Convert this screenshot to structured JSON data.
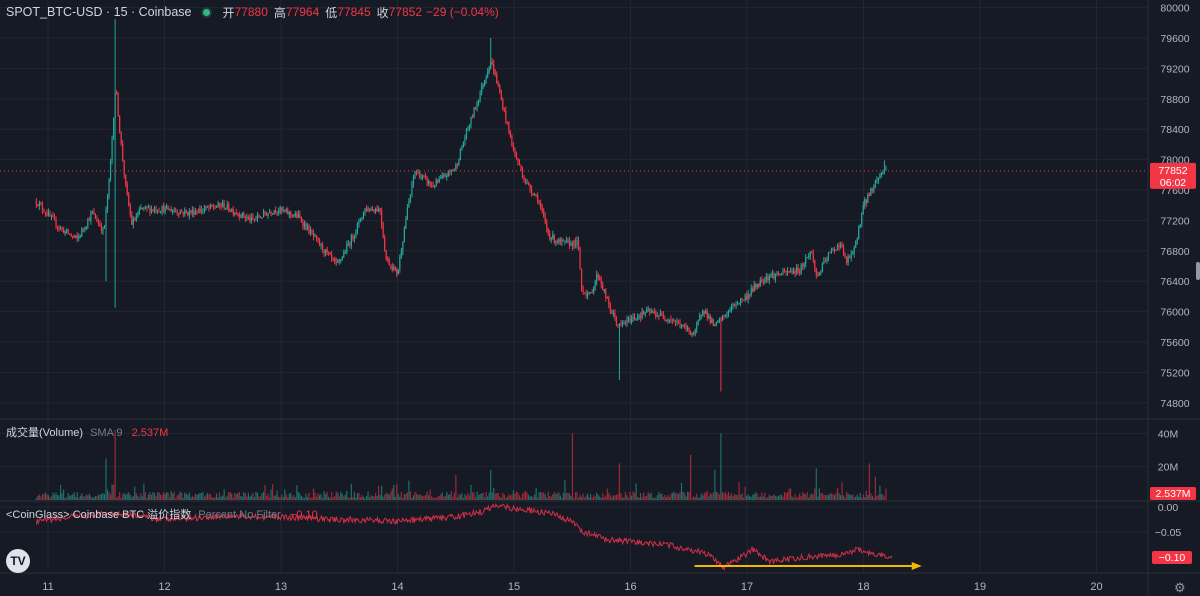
{
  "header": {
    "symbol": "SPOT_BTC-USD · 15 · Coinbase",
    "open_label": "开",
    "open_value": "77880",
    "high_label": "高",
    "high_value": "77964",
    "low_label": "低",
    "low_value": "77845",
    "close_label": "收",
    "close_value": "77852",
    "change": "−29 (−0.04%)"
  },
  "price_tag": {
    "price": "77852",
    "countdown": "06:02"
  },
  "volume_legend": {
    "title": "成交量(Volume)",
    "sma": "SMA 9",
    "value": "2.537M",
    "tag": "2.537M"
  },
  "cg_legend": {
    "title": "<CoinGlass> Coinbase BTC 溢价指数",
    "settings": "Percent No Filter",
    "value": "−0.10",
    "tag": "−0.10"
  },
  "logo_text": "TV",
  "colors": {
    "up": "#26a69a",
    "down": "#f23645",
    "bg": "#161a25",
    "grid": "#222633",
    "premium": "#d32f47",
    "arrow": "#f5b800"
  },
  "chart_data": [
    {
      "type": "candlestick",
      "title": "SPOT_BTC-USD · 15 · Coinbase",
      "x_ticks": [
        "11",
        "12",
        "13",
        "14",
        "15",
        "16",
        "17",
        "18",
        "19",
        "20"
      ],
      "ylim": [
        74600,
        80100
      ],
      "y_ticks": [
        74800,
        75200,
        75600,
        76000,
        76400,
        76800,
        77200,
        77600,
        78000,
        78400,
        78800,
        79200,
        79600,
        80000
      ],
      "last_price": 77852,
      "close_anchors": [
        [
          10.9,
          77450
        ],
        [
          11.1,
          77100
        ],
        [
          11.25,
          76950
        ],
        [
          11.38,
          77300
        ],
        [
          11.48,
          77050
        ],
        [
          11.53,
          77800
        ],
        [
          11.58,
          79000
        ],
        [
          11.62,
          78300
        ],
        [
          11.67,
          77600
        ],
        [
          11.72,
          77150
        ],
        [
          11.8,
          77350
        ],
        [
          12.0,
          77350
        ],
        [
          12.2,
          77300
        ],
        [
          12.5,
          77400
        ],
        [
          12.75,
          77200
        ],
        [
          12.95,
          77350
        ],
        [
          13.15,
          77250
        ],
        [
          13.32,
          76900
        ],
        [
          13.48,
          76600
        ],
        [
          13.62,
          77000
        ],
        [
          13.72,
          77350
        ],
        [
          13.85,
          77350
        ],
        [
          13.9,
          76700
        ],
        [
          14.0,
          76500
        ],
        [
          14.08,
          77300
        ],
        [
          14.15,
          77850
        ],
        [
          14.3,
          77650
        ],
        [
          14.5,
          77900
        ],
        [
          14.58,
          78300
        ],
        [
          14.67,
          78700
        ],
        [
          14.8,
          79300
        ],
        [
          14.85,
          79050
        ],
        [
          14.92,
          78600
        ],
        [
          15.0,
          78100
        ],
        [
          15.1,
          77700
        ],
        [
          15.2,
          77500
        ],
        [
          15.3,
          77000
        ],
        [
          15.4,
          76900
        ],
        [
          15.55,
          76900
        ],
        [
          15.58,
          76300
        ],
        [
          15.65,
          76200
        ],
        [
          15.72,
          76500
        ],
        [
          15.82,
          76050
        ],
        [
          15.9,
          75800
        ],
        [
          16.0,
          75900
        ],
        [
          16.15,
          76000
        ],
        [
          16.35,
          75900
        ],
        [
          16.55,
          75700
        ],
        [
          16.62,
          76050
        ],
        [
          16.72,
          75800
        ],
        [
          16.78,
          75900
        ],
        [
          16.9,
          76100
        ],
        [
          17.0,
          76200
        ],
        [
          17.05,
          76300
        ],
        [
          17.15,
          76450
        ],
        [
          17.3,
          76500
        ],
        [
          17.45,
          76550
        ],
        [
          17.55,
          76800
        ],
        [
          17.6,
          76450
        ],
        [
          17.7,
          76750
        ],
        [
          17.8,
          76900
        ],
        [
          17.85,
          76650
        ],
        [
          17.92,
          76800
        ],
        [
          18.0,
          77400
        ],
        [
          18.1,
          77700
        ],
        [
          18.18,
          77880
        ]
      ],
      "low_spikes": [
        [
          11.4,
          76500
        ],
        [
          11.5,
          76400
        ],
        [
          11.58,
          76050
        ],
        [
          15.82,
          74900
        ],
        [
          15.9,
          75100
        ],
        [
          16.78,
          74950
        ]
      ],
      "high_spikes": [
        [
          11.58,
          79850
        ],
        [
          14.8,
          79600
        ],
        [
          15.82,
          77100
        ],
        [
          18.18,
          77990
        ]
      ]
    },
    {
      "type": "bar",
      "title": "成交量(Volume)",
      "y_ticks": [
        "40M",
        "20M"
      ],
      "ylim": [
        0,
        48
      ],
      "unit": "M",
      "last_value": 2.537,
      "spikes": [
        [
          11.58,
          42
        ],
        [
          11.5,
          25
        ],
        [
          14.8,
          18
        ],
        [
          15.5,
          40
        ],
        [
          15.82,
          45
        ],
        [
          15.9,
          22
        ],
        [
          16.52,
          27
        ],
        [
          16.78,
          40
        ],
        [
          16.72,
          18
        ],
        [
          17.6,
          19
        ],
        [
          18.05,
          22
        ],
        [
          18.1,
          14
        ],
        [
          13.95,
          7
        ],
        [
          14.5,
          15
        ]
      ]
    },
    {
      "type": "line",
      "title": "<CoinGlass> Coinbase BTC 溢价指数",
      "y_ticks": [
        "0.00",
        "−0.05",
        "−0.10"
      ],
      "ylim": [
        -0.13,
        0.01
      ],
      "last_value": -0.1,
      "anchors": [
        [
          10.9,
          -0.03
        ],
        [
          11.2,
          -0.02
        ],
        [
          11.6,
          -0.012
        ],
        [
          12.0,
          -0.025
        ],
        [
          12.5,
          -0.018
        ],
        [
          13.0,
          -0.02
        ],
        [
          13.5,
          -0.025
        ],
        [
          14.0,
          -0.028
        ],
        [
          14.5,
          -0.02
        ],
        [
          14.75,
          -0.008
        ],
        [
          14.85,
          0.005
        ],
        [
          15.0,
          -0.003
        ],
        [
          15.3,
          -0.012
        ],
        [
          15.5,
          -0.03
        ],
        [
          15.6,
          -0.05
        ],
        [
          15.8,
          -0.065
        ],
        [
          16.0,
          -0.07
        ],
        [
          16.3,
          -0.075
        ],
        [
          16.6,
          -0.09
        ],
        [
          16.7,
          -0.1
        ],
        [
          16.8,
          -0.12
        ],
        [
          16.95,
          -0.1
        ],
        [
          17.05,
          -0.085
        ],
        [
          17.2,
          -0.11
        ],
        [
          17.5,
          -0.1
        ],
        [
          17.8,
          -0.095
        ],
        [
          17.95,
          -0.085
        ],
        [
          18.05,
          -0.093
        ],
        [
          18.25,
          -0.1
        ]
      ],
      "annotation": {
        "type": "arrow",
        "x_from": 16.55,
        "x_to": 18.5,
        "y": -0.118
      }
    }
  ]
}
